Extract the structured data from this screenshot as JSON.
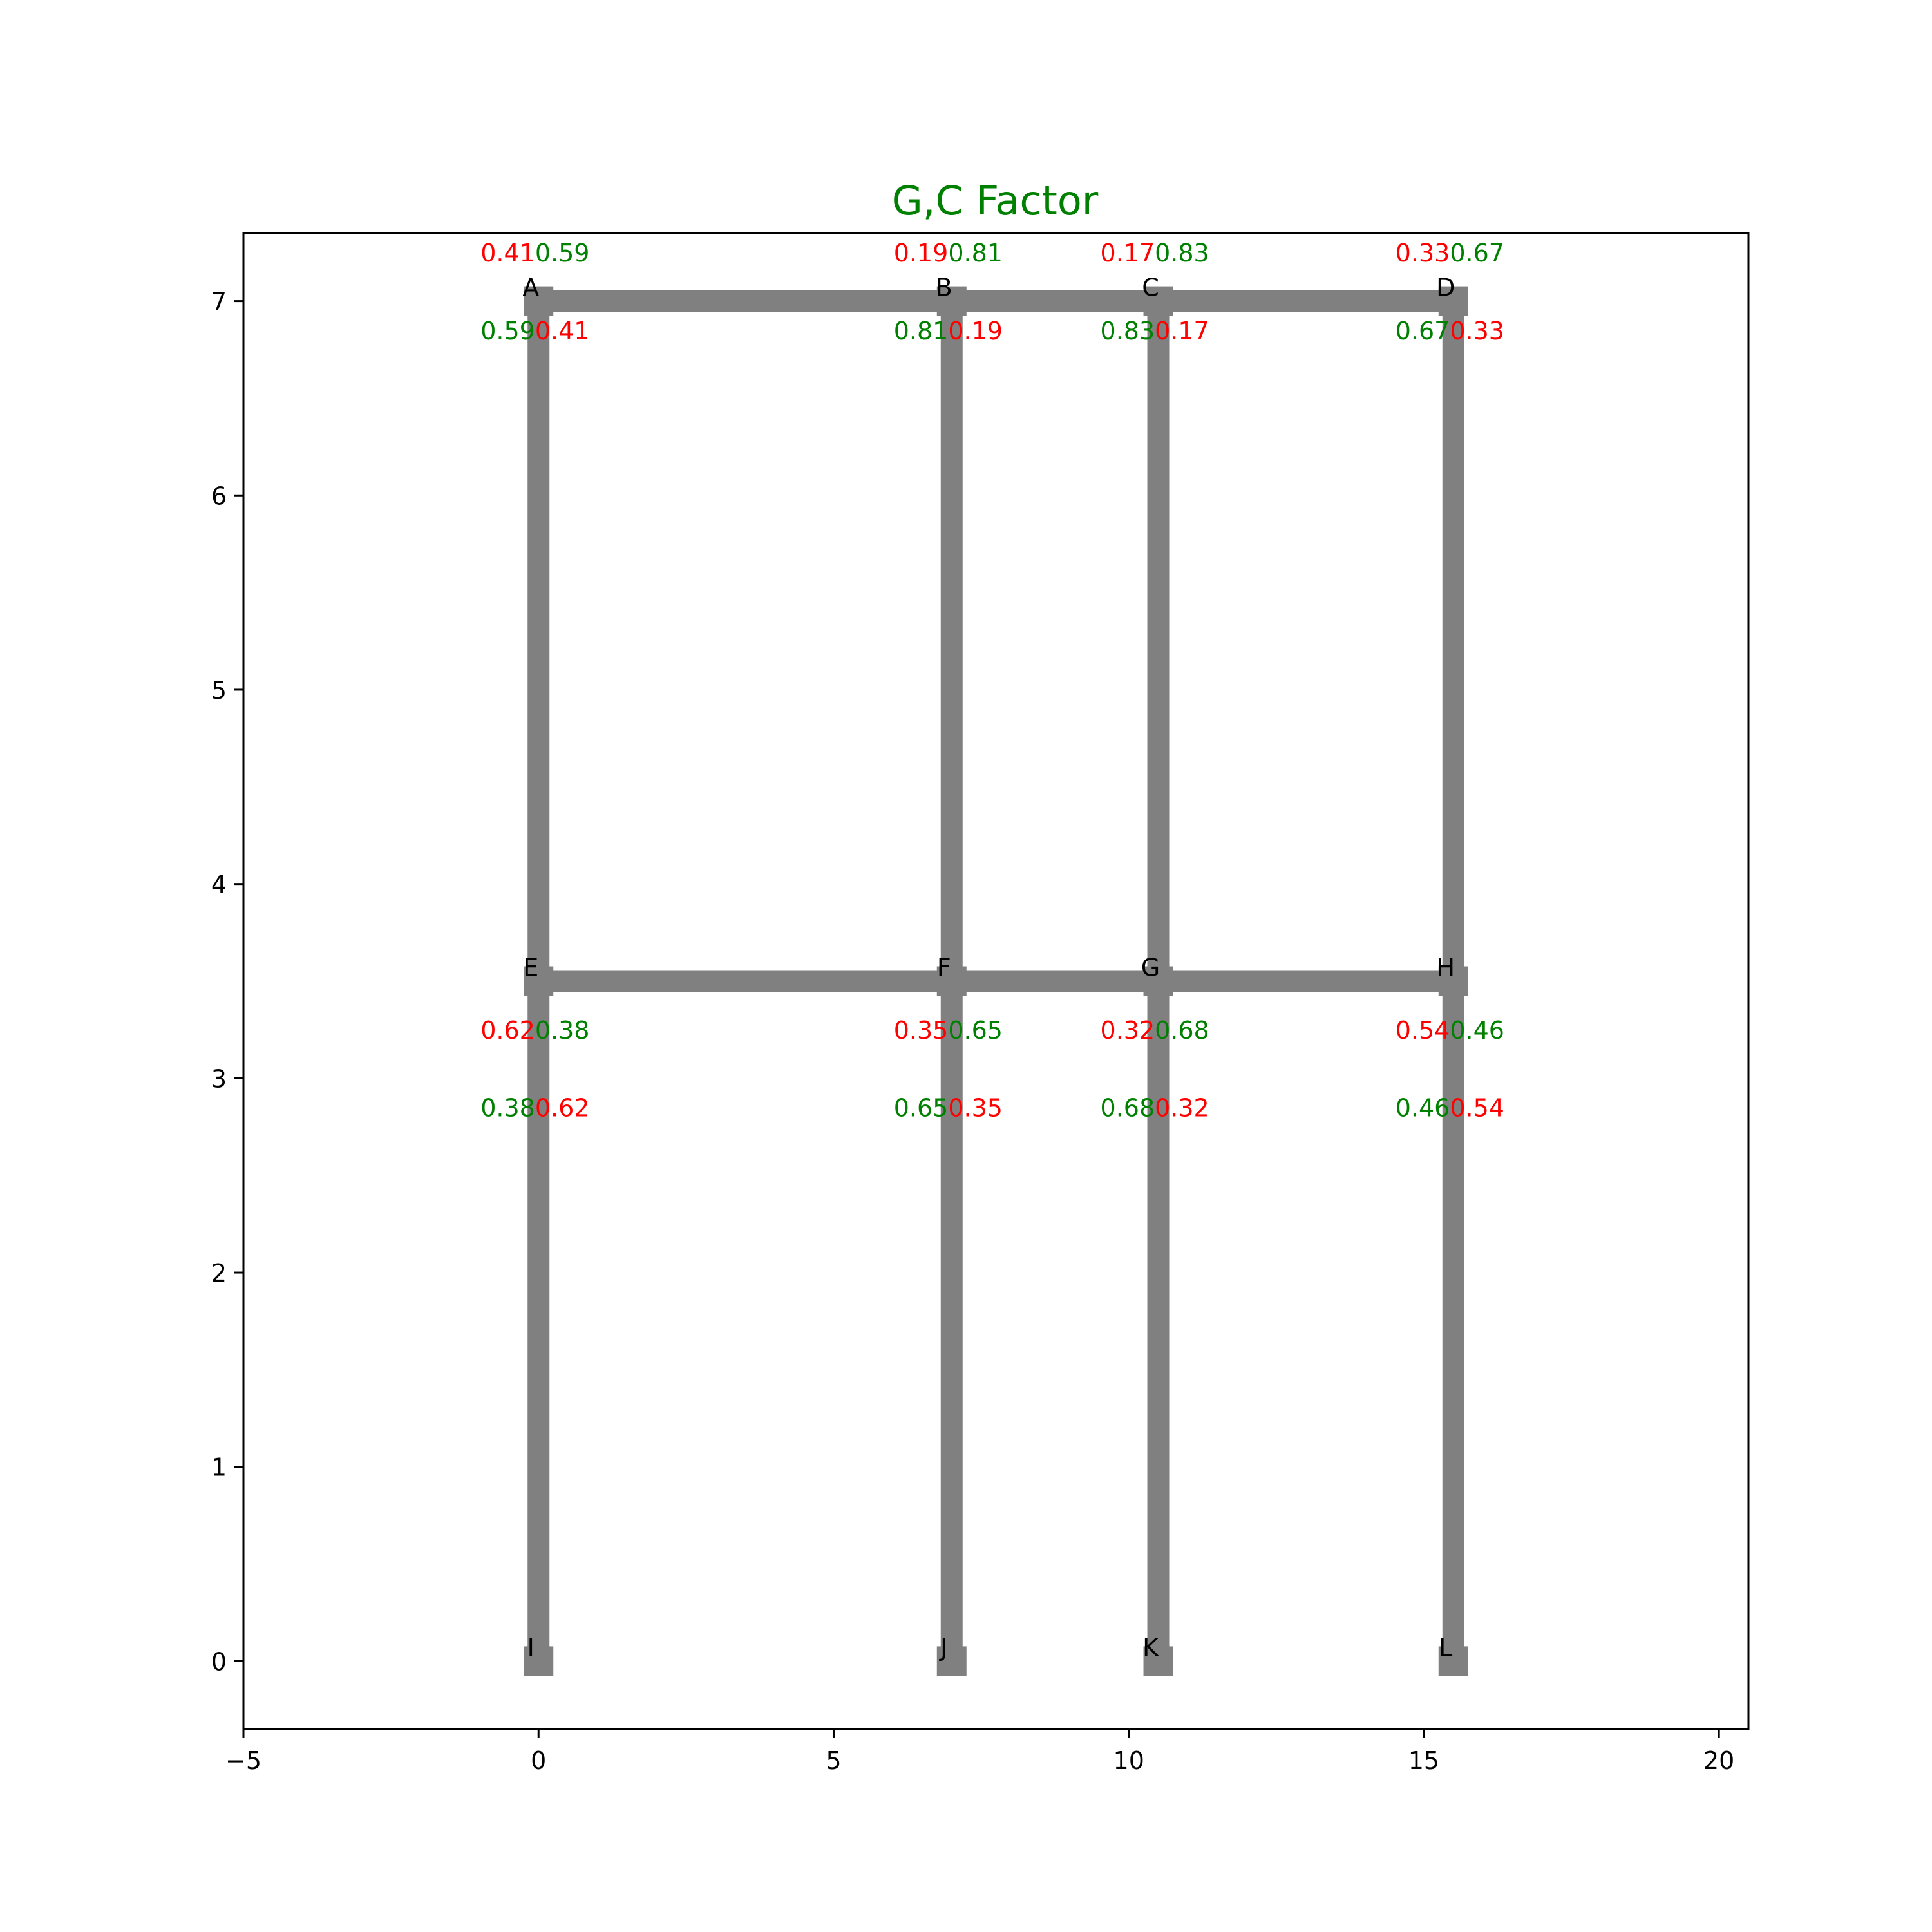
{
  "title": "G,C Factor",
  "colors": {
    "title": "#008000",
    "member": "#808080",
    "red": "#ff0000",
    "green": "#008000",
    "axis": "#000000"
  },
  "axes": {
    "xlim": [
      -5,
      20.5
    ],
    "ylim": [
      -0.35,
      7.35
    ],
    "xticks": [
      -5,
      0,
      5,
      10,
      15,
      20
    ],
    "yticks": [
      0,
      1,
      2,
      3,
      4,
      5,
      6,
      7
    ],
    "xtick_labels": [
      "−5",
      "0",
      "5",
      "10",
      "15",
      "20"
    ],
    "ytick_labels": [
      "0",
      "1",
      "2",
      "3",
      "4",
      "5",
      "6",
      "7"
    ]
  },
  "nodes": [
    {
      "id": "A",
      "label": "A",
      "x": 0,
      "y": 7
    },
    {
      "id": "B",
      "label": "B",
      "x": 7,
      "y": 7
    },
    {
      "id": "C",
      "label": "C",
      "x": 10.5,
      "y": 7
    },
    {
      "id": "D",
      "label": "D",
      "x": 15.5,
      "y": 7
    },
    {
      "id": "E",
      "label": "E",
      "x": 0,
      "y": 3.5
    },
    {
      "id": "F",
      "label": "F",
      "x": 7,
      "y": 3.5
    },
    {
      "id": "G",
      "label": "G",
      "x": 10.5,
      "y": 3.5
    },
    {
      "id": "H",
      "label": "H",
      "x": 15.5,
      "y": 3.5
    },
    {
      "id": "I",
      "label": "I",
      "x": 0,
      "y": 0
    },
    {
      "id": "J",
      "label": "J",
      "x": 7,
      "y": 0
    },
    {
      "id": "K",
      "label": "K",
      "x": 10.5,
      "y": 0
    },
    {
      "id": "L",
      "label": "L",
      "x": 15.5,
      "y": 0
    }
  ],
  "members": [
    [
      "A",
      "B"
    ],
    [
      "B",
      "C"
    ],
    [
      "C",
      "D"
    ],
    [
      "E",
      "F"
    ],
    [
      "F",
      "G"
    ],
    [
      "G",
      "H"
    ],
    [
      "A",
      "E"
    ],
    [
      "B",
      "F"
    ],
    [
      "C",
      "G"
    ],
    [
      "D",
      "H"
    ],
    [
      "E",
      "I"
    ],
    [
      "F",
      "J"
    ],
    [
      "G",
      "K"
    ],
    [
      "H",
      "L"
    ]
  ],
  "factors": [
    {
      "x": 0,
      "y": 7.25,
      "red": "0.41",
      "green": "0.59",
      "order": "red-first"
    },
    {
      "x": 0,
      "y": 6.85,
      "red": "0.41",
      "green": "0.59",
      "order": "green-first"
    },
    {
      "x": 7,
      "y": 7.25,
      "red": "0.19",
      "green": "0.81",
      "order": "red-first"
    },
    {
      "x": 7,
      "y": 6.85,
      "red": "0.19",
      "green": "0.81",
      "order": "green-first"
    },
    {
      "x": 10.5,
      "y": 7.25,
      "red": "0.17",
      "green": "0.83",
      "order": "red-first"
    },
    {
      "x": 10.5,
      "y": 6.85,
      "red": "0.17",
      "green": "0.83",
      "order": "green-first"
    },
    {
      "x": 15.5,
      "y": 7.25,
      "red": "0.33",
      "green": "0.67",
      "order": "red-first"
    },
    {
      "x": 15.5,
      "y": 6.85,
      "red": "0.33",
      "green": "0.67",
      "order": "green-first"
    },
    {
      "x": 0,
      "y": 3.25,
      "red": "0.62",
      "green": "0.38",
      "order": "red-first"
    },
    {
      "x": 0,
      "y": 2.85,
      "red": "0.62",
      "green": "0.38",
      "order": "green-first"
    },
    {
      "x": 7,
      "y": 3.25,
      "red": "0.35",
      "green": "0.65",
      "order": "red-first"
    },
    {
      "x": 7,
      "y": 2.85,
      "red": "0.35",
      "green": "0.65",
      "order": "green-first"
    },
    {
      "x": 10.5,
      "y": 3.25,
      "red": "0.32",
      "green": "0.68",
      "order": "red-first"
    },
    {
      "x": 10.5,
      "y": 2.85,
      "red": "0.32",
      "green": "0.68",
      "order": "green-first"
    },
    {
      "x": 15.5,
      "y": 3.25,
      "red": "0.54",
      "green": "0.46",
      "order": "red-first"
    },
    {
      "x": 15.5,
      "y": 2.85,
      "red": "0.54",
      "green": "0.46",
      "order": "green-first"
    }
  ]
}
